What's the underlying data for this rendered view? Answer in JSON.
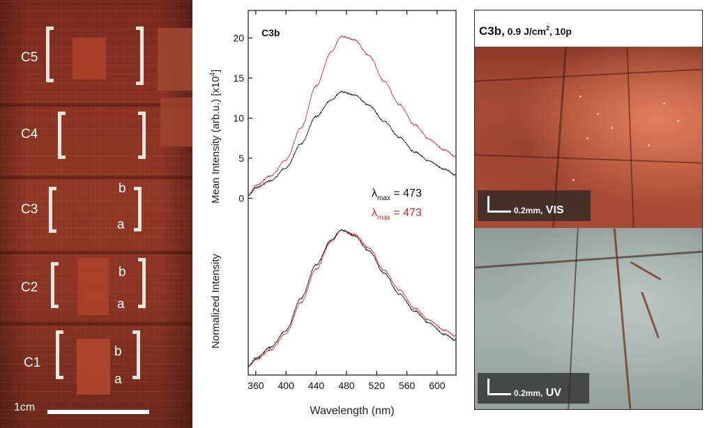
{
  "left_photo": {
    "labels": [
      {
        "text": "C5"
      },
      {
        "text": "C4"
      },
      {
        "text": "C3"
      },
      {
        "text": "C2"
      },
      {
        "text": "C1"
      },
      {
        "text": "b"
      },
      {
        "text": "a"
      },
      {
        "text": "b"
      },
      {
        "text": "a"
      },
      {
        "text": "b"
      },
      {
        "text": "a"
      }
    ],
    "scale_label": "1cm"
  },
  "chart_data": {
    "type": "line",
    "title": "C3b",
    "xlabel": "Wavelength (nm)",
    "xlim": [
      350,
      625
    ],
    "x_ticks": [
      360,
      400,
      440,
      480,
      520,
      560,
      600
    ],
    "top_panel": {
      "ylabel": "Mean Intensity (arb.u.) [x10",
      "ylabel_exp": "4",
      "ylabel_end": "]",
      "ylim": [
        -1,
        23
      ],
      "y_ticks": [
        0,
        5,
        10,
        15,
        20
      ],
      "series": [
        {
          "color": "#d42a2a",
          "x": [
            350,
            360,
            380,
            400,
            420,
            440,
            460,
            473,
            490,
            510,
            530,
            550,
            570,
            590,
            610,
            625
          ],
          "y": [
            0.3,
            1.6,
            2.8,
            4.8,
            8.8,
            14.0,
            18.3,
            20.2,
            19.8,
            17.8,
            14.6,
            11.7,
            9.2,
            7.3,
            6.0,
            5.2
          ]
        },
        {
          "color": "#111111",
          "x": [
            350,
            360,
            380,
            400,
            420,
            440,
            460,
            473,
            490,
            510,
            530,
            550,
            570,
            590,
            610,
            625
          ],
          "y": [
            0.3,
            1.3,
            2.2,
            3.8,
            6.8,
            10.2,
            12.3,
            13.3,
            12.9,
            11.6,
            9.6,
            7.6,
            5.8,
            4.6,
            3.6,
            2.9
          ]
        }
      ]
    },
    "bottom_panel": {
      "ylabel": "Normalized Intensity",
      "ylim": [
        0,
        1.05
      ],
      "series": [
        {
          "color": "#d42a2a",
          "x": [
            350,
            360,
            380,
            400,
            420,
            440,
            460,
            473,
            490,
            510,
            530,
            550,
            570,
            590,
            610,
            625
          ],
          "y": [
            0.02,
            0.07,
            0.14,
            0.26,
            0.48,
            0.72,
            0.92,
            1.0,
            0.97,
            0.87,
            0.71,
            0.57,
            0.44,
            0.35,
            0.28,
            0.24
          ]
        },
        {
          "color": "#111111",
          "x": [
            350,
            360,
            380,
            400,
            420,
            440,
            460,
            473,
            490,
            510,
            530,
            550,
            570,
            590,
            610,
            625
          ],
          "y": [
            0.02,
            0.08,
            0.16,
            0.28,
            0.51,
            0.75,
            0.93,
            1.0,
            0.96,
            0.85,
            0.69,
            0.54,
            0.42,
            0.33,
            0.25,
            0.21
          ]
        }
      ]
    },
    "annotations": [
      {
        "symbol": "λ",
        "sub": "max",
        "text": " = 473",
        "color": "#111111"
      },
      {
        "symbol": "λ",
        "sub": "max",
        "text": " = 473",
        "color": "#d42a2a"
      }
    ]
  },
  "right_panel": {
    "title_main": "C3b,",
    "title_rest": " 0.9 J/cm",
    "title_sup": "2",
    "title_end": ", 10p",
    "vis": {
      "scale": "0.2mm,",
      "mode": " VIS"
    },
    "uv": {
      "scale": "0.2mm,",
      "mode": " UV"
    }
  }
}
